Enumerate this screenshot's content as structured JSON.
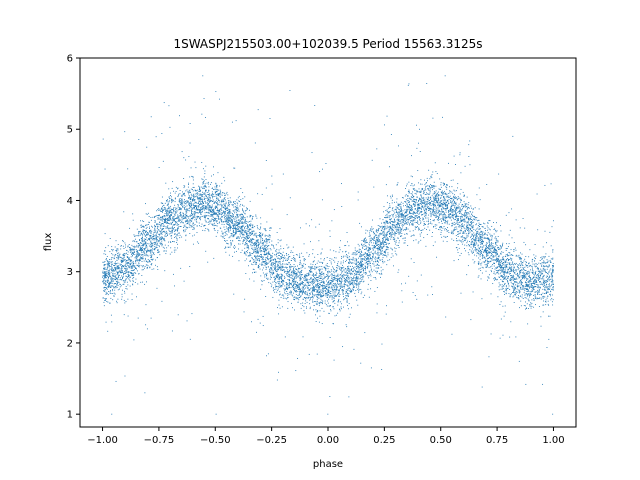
{
  "chart_data": {
    "type": "scatter",
    "title": "1SWASPJ215503.00+102039.5 Period 15563.3125s",
    "xlabel": "phase",
    "ylabel": "flux",
    "xlim": [
      -1.1,
      1.1
    ],
    "ylim": [
      0.82,
      6.0
    ],
    "xticks": [
      -1.0,
      -0.75,
      -0.5,
      -0.25,
      0.0,
      0.25,
      0.5,
      0.75,
      1.0
    ],
    "xtick_labels": [
      "−1.00",
      "−0.75",
      "−0.50",
      "−0.25",
      "0.00",
      "0.25",
      "0.50",
      "0.75",
      "1.00"
    ],
    "yticks": [
      1,
      2,
      3,
      4,
      5,
      6
    ],
    "ytick_labels": [
      "1",
      "2",
      "3",
      "4",
      "5",
      "6"
    ],
    "grid": false,
    "legend": "none",
    "point_color": "#1f77b4",
    "model": {
      "description_of_shape": "phase-folded light curve, two maxima and two minima",
      "x_range": [
        -1.0,
        1.0
      ],
      "curve_x": [
        -1.0,
        -0.9,
        -0.8,
        -0.7,
        -0.6,
        -0.55,
        -0.5,
        -0.4,
        -0.3,
        -0.2,
        -0.1,
        0.0,
        0.1,
        0.2,
        0.3,
        0.4,
        0.45,
        0.5,
        0.6,
        0.7,
        0.8,
        0.9,
        1.0
      ],
      "curve_y": [
        2.9,
        3.05,
        3.4,
        3.75,
        3.92,
        3.95,
        3.9,
        3.65,
        3.3,
        2.95,
        2.82,
        2.8,
        2.92,
        3.3,
        3.68,
        3.9,
        3.95,
        3.92,
        3.72,
        3.35,
        3.0,
        2.85,
        2.9
      ],
      "scatter_sigma": 0.18,
      "outlier_fraction": 0.05,
      "outlier_y_range": [
        1.0,
        5.75
      ],
      "n_points": 9000
    }
  }
}
